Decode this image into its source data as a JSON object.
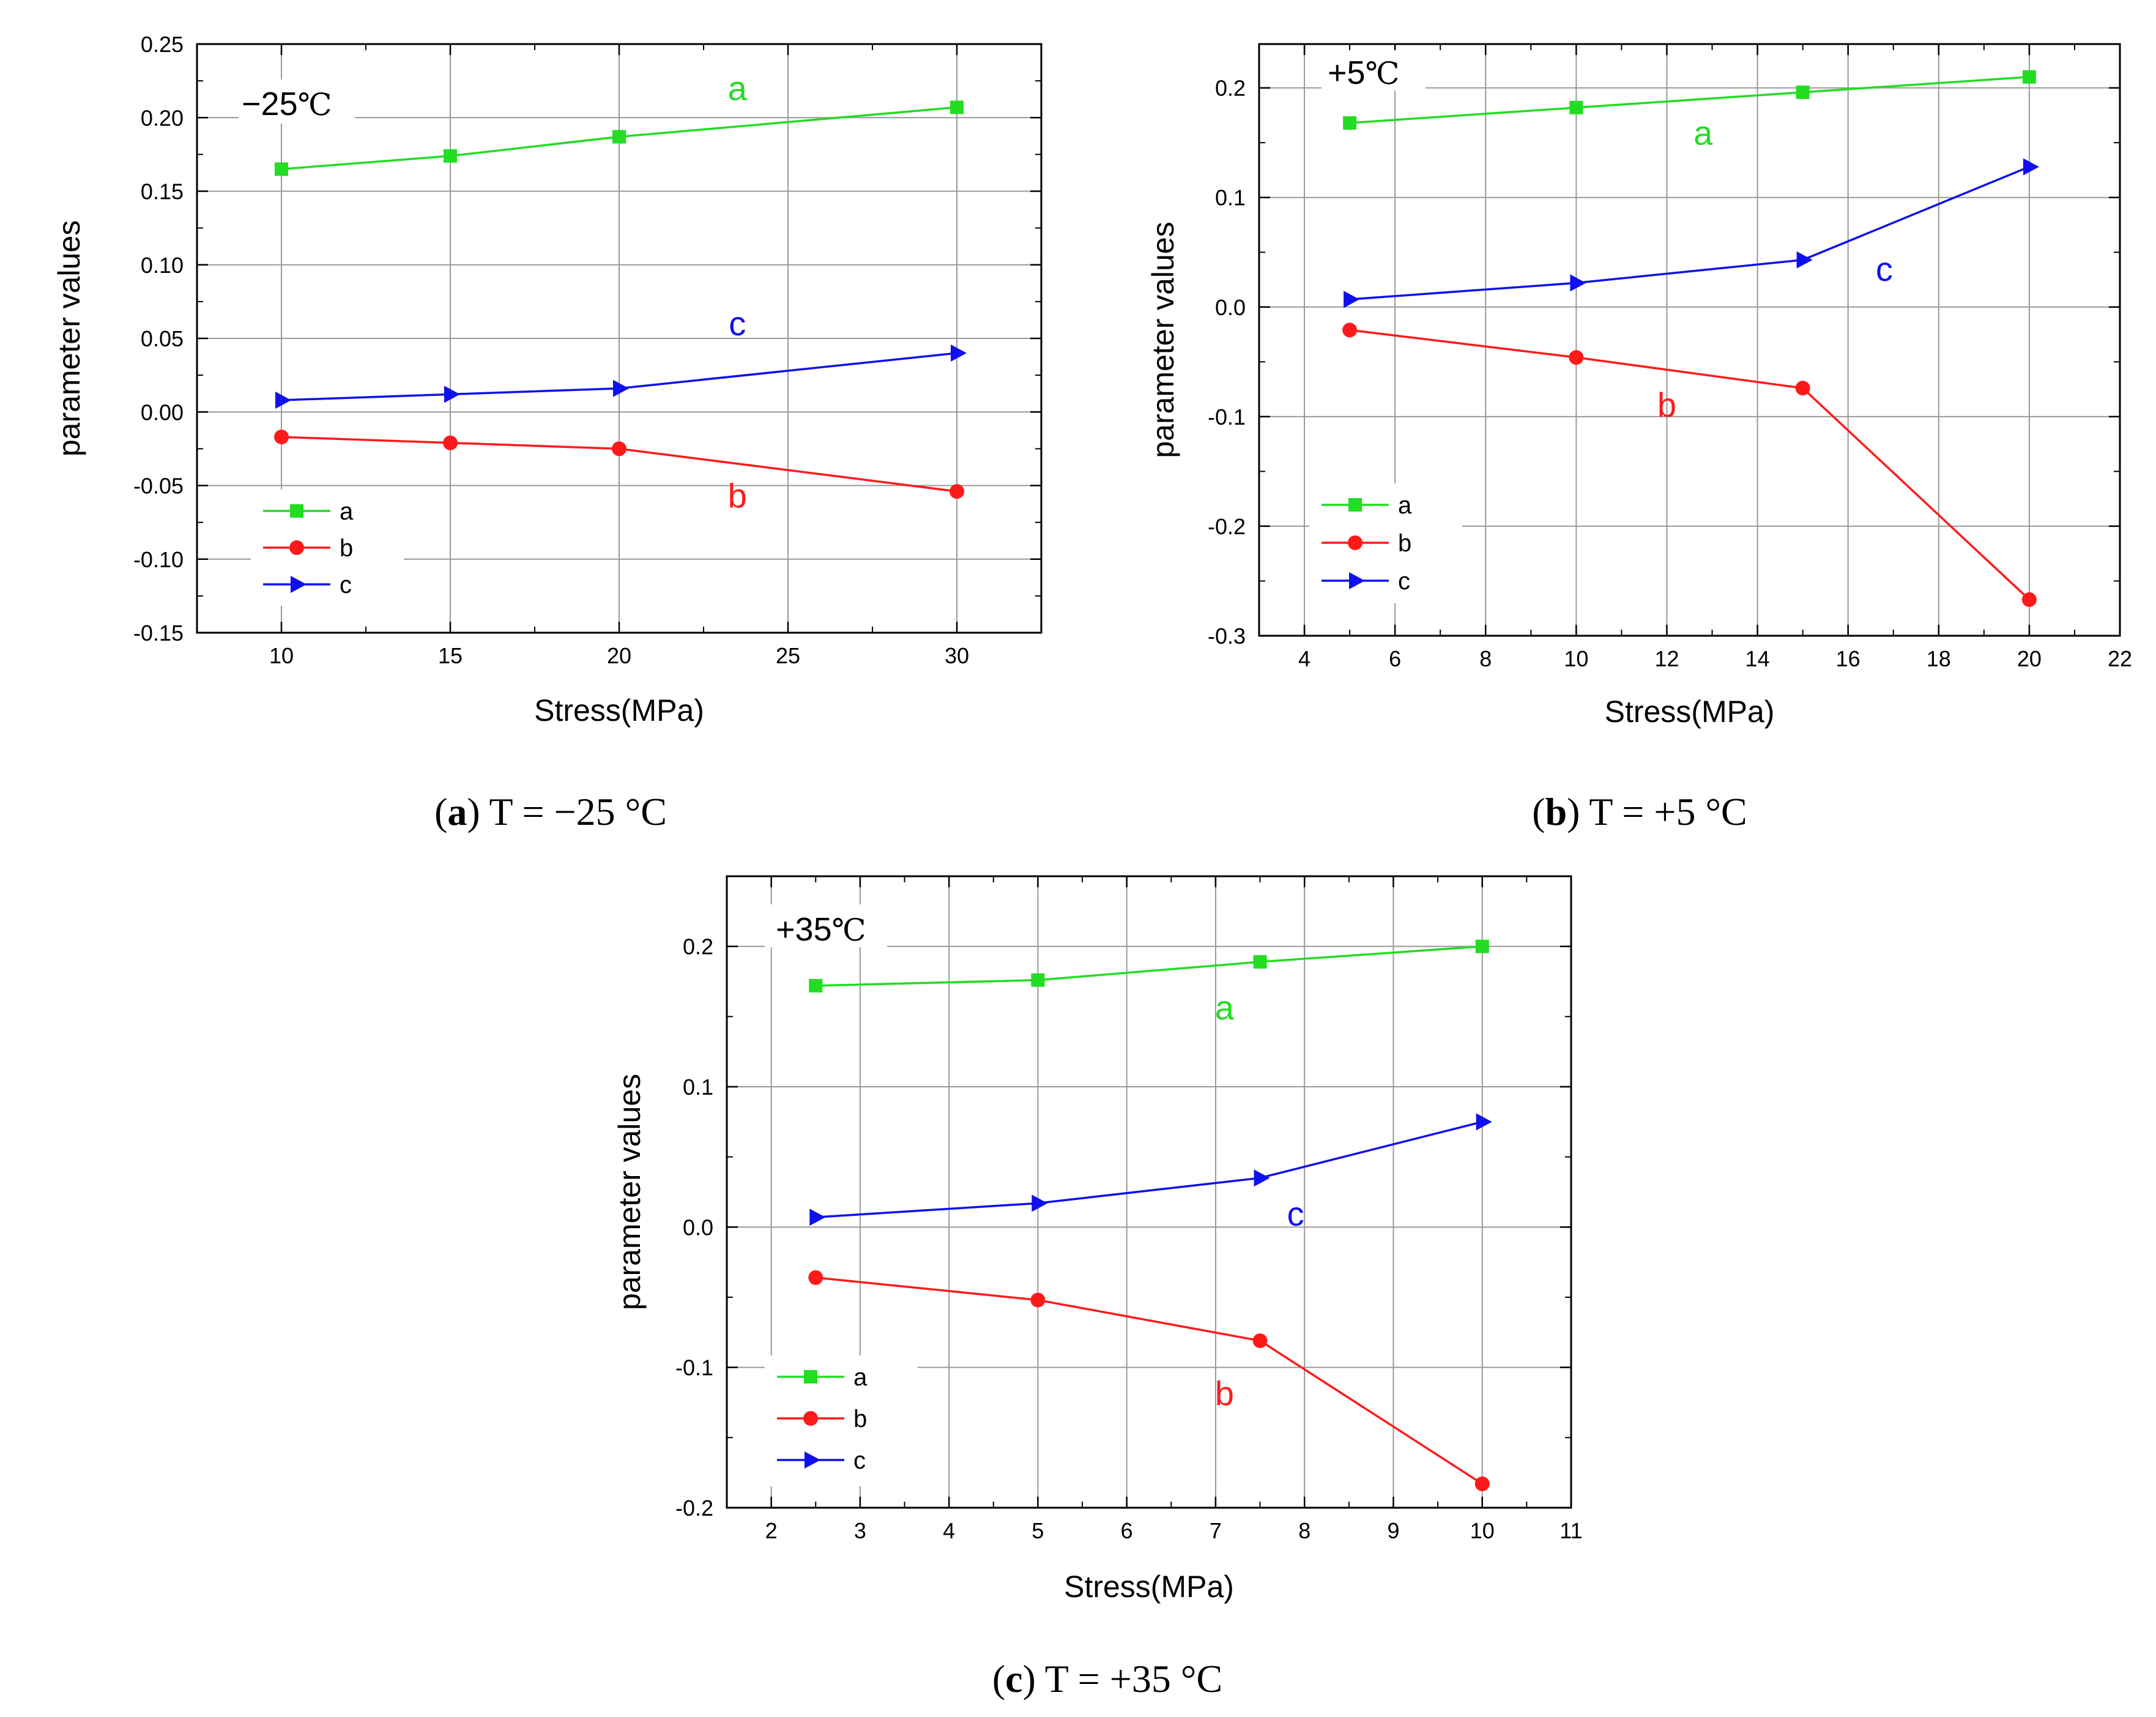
{
  "figure": {
    "colors": {
      "a": "#22dd22",
      "b": "#ff1a1a",
      "c": "#1010ee",
      "grid": "#999999",
      "axis": "#000000"
    }
  },
  "chart_data": [
    {
      "id": "panel-a",
      "type": "line",
      "caption": {
        "letter": "a",
        "text": " T = −25 °C",
        "open": "(",
        "close": ")"
      },
      "temp_label": {
        "main": "−25",
        "unit": "℃"
      },
      "xlabel": "Stress(MPa)",
      "ylabel": "parameter values",
      "xlim": [
        7.5,
        32.5
      ],
      "ylim": [
        -0.15,
        0.25
      ],
      "xticks": [
        10,
        15,
        20,
        25,
        30
      ],
      "xtick_labels": [
        "10",
        "15",
        "20",
        "25",
        "30"
      ],
      "yticks": [
        -0.15,
        -0.1,
        -0.05,
        0.0,
        0.05,
        0.1,
        0.15,
        0.2,
        0.25
      ],
      "ytick_labels": [
        "-0.15",
        "-0.10",
        "-0.05",
        "0.00",
        "0.05",
        "0.10",
        "0.15",
        "0.20",
        "0.25"
      ],
      "series": [
        {
          "name": "a",
          "marker": "square",
          "x": [
            10,
            15,
            20,
            30
          ],
          "values": [
            0.165,
            0.174,
            0.187,
            0.207
          ]
        },
        {
          "name": "b",
          "marker": "circle",
          "x": [
            10,
            15,
            20,
            30
          ],
          "values": [
            -0.017,
            -0.021,
            -0.025,
            -0.054
          ]
        },
        {
          "name": "c",
          "marker": "triangle",
          "x": [
            10,
            15,
            20,
            30
          ],
          "values": [
            0.008,
            0.012,
            0.016,
            0.04
          ]
        }
      ],
      "series_labels": [
        {
          "series": "a",
          "text": "a",
          "x": 23.5,
          "y": 0.212
        },
        {
          "series": "c",
          "text": "c",
          "x": 23.5,
          "y": 0.052
        },
        {
          "series": "b",
          "text": "b",
          "x": 23.5,
          "y": -0.065
        }
      ],
      "legend": [
        "a",
        "b",
        "c"
      ]
    },
    {
      "id": "panel-b",
      "type": "line",
      "caption": {
        "letter": "b",
        "text": " T = +5 °C",
        "open": "(",
        "close": ")"
      },
      "temp_label": {
        "main": "+5",
        "unit": "℃"
      },
      "xlabel": "Stress(MPa)",
      "ylabel": "parameter values",
      "xlim": [
        3,
        22
      ],
      "ylim": [
        -0.3,
        0.24
      ],
      "xticks": [
        4,
        6,
        8,
        10,
        12,
        14,
        16,
        18,
        20,
        22
      ],
      "xtick_labels": [
        "4",
        "6",
        "8",
        "10",
        "12",
        "14",
        "16",
        "18",
        "20",
        "22"
      ],
      "yticks": [
        -0.3,
        -0.2,
        -0.1,
        0.0,
        0.1,
        0.2
      ],
      "ytick_labels": [
        "-0.3",
        "-0.2",
        "-0.1",
        "0.0",
        "0.1",
        "0.2"
      ],
      "series": [
        {
          "name": "a",
          "marker": "square",
          "x": [
            5,
            10,
            15,
            20
          ],
          "values": [
            0.168,
            0.182,
            0.196,
            0.21
          ]
        },
        {
          "name": "b",
          "marker": "circle",
          "x": [
            5,
            10,
            15,
            20
          ],
          "values": [
            -0.021,
            -0.046,
            -0.074,
            -0.267
          ]
        },
        {
          "name": "c",
          "marker": "triangle",
          "x": [
            5,
            10,
            15,
            20
          ],
          "values": [
            0.007,
            0.022,
            0.043,
            0.128
          ]
        }
      ],
      "series_labels": [
        {
          "series": "a",
          "text": "a",
          "x": 12.8,
          "y": 0.148
        },
        {
          "series": "c",
          "text": "c",
          "x": 16.8,
          "y": 0.024
        },
        {
          "series": "b",
          "text": "b",
          "x": 12.0,
          "y": -0.1
        }
      ],
      "legend": [
        "a",
        "b",
        "c"
      ]
    },
    {
      "id": "panel-c",
      "type": "line",
      "caption": {
        "letter": "c",
        "text": " T = +35 °C",
        "open": "(",
        "close": ")"
      },
      "temp_label": {
        "main": "+35",
        "unit": "℃"
      },
      "xlabel": "Stress(MPa)",
      "ylabel": "parameter values",
      "xlim": [
        1.5,
        11
      ],
      "ylim": [
        -0.2,
        0.25
      ],
      "xticks": [
        2,
        3,
        4,
        5,
        6,
        7,
        8,
        9,
        10,
        11
      ],
      "xtick_labels": [
        "2",
        "3",
        "4",
        "5",
        "6",
        "7",
        "8",
        "9",
        "10",
        "11"
      ],
      "yticks": [
        -0.2,
        -0.1,
        0.0,
        0.1,
        0.2
      ],
      "ytick_labels": [
        "-0.2",
        "-0.1",
        "0.0",
        "0.1",
        "0.2"
      ],
      "series": [
        {
          "name": "a",
          "marker": "square",
          "x": [
            2.5,
            5,
            7.5,
            10
          ],
          "values": [
            0.172,
            0.176,
            0.189,
            0.2
          ]
        },
        {
          "name": "b",
          "marker": "circle",
          "x": [
            2.5,
            5,
            7.5,
            10
          ],
          "values": [
            -0.036,
            -0.052,
            -0.081,
            -0.183
          ]
        },
        {
          "name": "c",
          "marker": "triangle",
          "x": [
            2.5,
            5,
            7.5,
            10
          ],
          "values": [
            0.007,
            0.017,
            0.035,
            0.075
          ]
        }
      ],
      "series_labels": [
        {
          "series": "a",
          "text": "a",
          "x": 7.1,
          "y": 0.148
        },
        {
          "series": "c",
          "text": "c",
          "x": 7.9,
          "y": 0.001
        },
        {
          "series": "b",
          "text": "b",
          "x": 7.1,
          "y": -0.127
        }
      ],
      "legend": [
        "a",
        "b",
        "c"
      ]
    }
  ]
}
